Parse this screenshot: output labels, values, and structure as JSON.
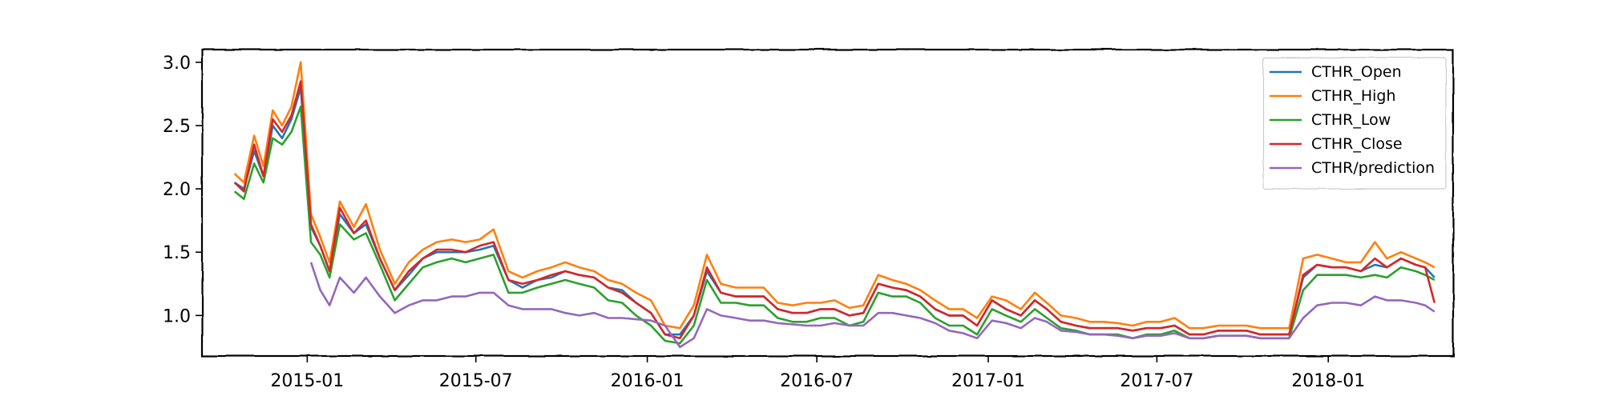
{
  "chart_data": {
    "type": "line",
    "title": "",
    "xlabel": "",
    "ylabel": "",
    "xlim": [
      "2014-09-10",
      "2018-05-15"
    ],
    "ylim": [
      0.68,
      3.1
    ],
    "grid": false,
    "legend_placement": "top-right",
    "x_ticks": [
      "2015-01",
      "2015-07",
      "2016-01",
      "2016-07",
      "2017-01",
      "2017-07",
      "2018-01"
    ],
    "y_ticks": [
      "1.0",
      "1.5",
      "2.0",
      "2.5",
      "3.0"
    ],
    "x": [
      "2014-10-15",
      "2014-10-25",
      "2014-11-05",
      "2014-11-15",
      "2014-11-25",
      "2014-12-05",
      "2014-12-15",
      "2014-12-25",
      "2015-01-05",
      "2015-01-15",
      "2015-01-25",
      "2015-02-05",
      "2015-02-20",
      "2015-03-05",
      "2015-03-20",
      "2015-04-05",
      "2015-04-20",
      "2015-05-05",
      "2015-05-20",
      "2015-06-05",
      "2015-06-20",
      "2015-07-05",
      "2015-07-20",
      "2015-08-05",
      "2015-08-20",
      "2015-09-05",
      "2015-09-20",
      "2015-10-05",
      "2015-10-20",
      "2015-11-05",
      "2015-11-20",
      "2015-12-05",
      "2015-12-20",
      "2016-01-05",
      "2016-01-20",
      "2016-02-05",
      "2016-02-20",
      "2016-03-05",
      "2016-03-20",
      "2016-04-05",
      "2016-04-20",
      "2016-05-05",
      "2016-05-20",
      "2016-06-05",
      "2016-06-20",
      "2016-07-05",
      "2016-07-20",
      "2016-08-05",
      "2016-08-20",
      "2016-09-05",
      "2016-09-20",
      "2016-10-05",
      "2016-10-20",
      "2016-11-05",
      "2016-11-20",
      "2016-12-05",
      "2016-12-20",
      "2017-01-05",
      "2017-01-20",
      "2017-02-05",
      "2017-02-20",
      "2017-03-05",
      "2017-03-20",
      "2017-04-05",
      "2017-04-20",
      "2017-05-05",
      "2017-05-20",
      "2017-06-05",
      "2017-06-20",
      "2017-07-05",
      "2017-07-20",
      "2017-08-05",
      "2017-08-20",
      "2017-09-05",
      "2017-09-20",
      "2017-10-05",
      "2017-10-20",
      "2017-11-05",
      "2017-11-20",
      "2017-12-05",
      "2017-12-20",
      "2018-01-05",
      "2018-01-20",
      "2018-02-05",
      "2018-02-20",
      "2018-03-05",
      "2018-03-20",
      "2018-04-05",
      "2018-04-15",
      "2018-04-25"
    ],
    "series": [
      {
        "name": "CTHR_Open",
        "color": "#1f77b4",
        "values": [
          2.05,
          2.0,
          2.3,
          2.1,
          2.5,
          2.4,
          2.55,
          2.8,
          1.7,
          1.55,
          1.35,
          1.8,
          1.65,
          1.72,
          1.45,
          1.2,
          1.32,
          1.45,
          1.5,
          1.5,
          1.5,
          1.52,
          1.55,
          1.28,
          1.22,
          1.28,
          1.3,
          1.35,
          1.32,
          1.3,
          1.22,
          1.2,
          1.1,
          1.02,
          0.85,
          0.85,
          1.0,
          1.35,
          1.18,
          1.15,
          1.15,
          1.15,
          1.05,
          1.02,
          1.02,
          1.05,
          1.05,
          1.0,
          1.02,
          1.25,
          1.22,
          1.2,
          1.15,
          1.05,
          1.0,
          1.0,
          0.92,
          1.12,
          1.05,
          1.0,
          1.12,
          1.05,
          0.95,
          0.92,
          0.9,
          0.9,
          0.9,
          0.88,
          0.9,
          0.9,
          0.92,
          0.85,
          0.85,
          0.88,
          0.88,
          0.88,
          0.85,
          0.85,
          0.85,
          1.3,
          1.4,
          1.38,
          1.38,
          1.35,
          1.4,
          1.38,
          1.45,
          1.4,
          1.38,
          1.3
        ]
      },
      {
        "name": "CTHR_High",
        "color": "#ff7f0e",
        "values": [
          2.12,
          2.05,
          2.42,
          2.18,
          2.62,
          2.5,
          2.65,
          3.0,
          1.8,
          1.62,
          1.42,
          1.9,
          1.7,
          1.88,
          1.52,
          1.25,
          1.42,
          1.52,
          1.58,
          1.6,
          1.58,
          1.6,
          1.68,
          1.35,
          1.3,
          1.35,
          1.38,
          1.42,
          1.38,
          1.35,
          1.28,
          1.25,
          1.18,
          1.12,
          0.92,
          0.9,
          1.08,
          1.48,
          1.25,
          1.22,
          1.22,
          1.22,
          1.1,
          1.08,
          1.1,
          1.1,
          1.12,
          1.06,
          1.08,
          1.32,
          1.28,
          1.25,
          1.2,
          1.12,
          1.05,
          1.05,
          0.98,
          1.15,
          1.12,
          1.05,
          1.18,
          1.1,
          1.0,
          0.98,
          0.95,
          0.95,
          0.94,
          0.92,
          0.95,
          0.95,
          0.98,
          0.9,
          0.9,
          0.92,
          0.92,
          0.92,
          0.9,
          0.9,
          0.9,
          1.45,
          1.48,
          1.45,
          1.42,
          1.42,
          1.58,
          1.45,
          1.5,
          1.45,
          1.42,
          1.38
        ]
      },
      {
        "name": "CTHR_Low",
        "color": "#2ca02c",
        "values": [
          1.98,
          1.92,
          2.2,
          2.05,
          2.4,
          2.35,
          2.45,
          2.65,
          1.58,
          1.48,
          1.3,
          1.72,
          1.6,
          1.65,
          1.4,
          1.12,
          1.25,
          1.38,
          1.42,
          1.45,
          1.42,
          1.45,
          1.48,
          1.18,
          1.18,
          1.22,
          1.25,
          1.28,
          1.25,
          1.22,
          1.12,
          1.1,
          1.0,
          0.92,
          0.8,
          0.78,
          0.92,
          1.28,
          1.1,
          1.1,
          1.08,
          1.08,
          0.98,
          0.95,
          0.95,
          0.98,
          0.98,
          0.92,
          0.95,
          1.18,
          1.15,
          1.15,
          1.1,
          0.98,
          0.92,
          0.92,
          0.85,
          1.05,
          1.0,
          0.95,
          1.05,
          0.98,
          0.9,
          0.88,
          0.85,
          0.85,
          0.85,
          0.82,
          0.85,
          0.85,
          0.88,
          0.82,
          0.82,
          0.84,
          0.84,
          0.84,
          0.82,
          0.82,
          0.82,
          1.2,
          1.32,
          1.32,
          1.32,
          1.3,
          1.32,
          1.3,
          1.38,
          1.35,
          1.32,
          1.28
        ]
      },
      {
        "name": "CTHR_Close",
        "color": "#d62728",
        "values": [
          2.05,
          1.98,
          2.35,
          2.1,
          2.55,
          2.45,
          2.58,
          2.85,
          1.72,
          1.55,
          1.35,
          1.85,
          1.65,
          1.75,
          1.45,
          1.2,
          1.35,
          1.45,
          1.52,
          1.52,
          1.5,
          1.55,
          1.58,
          1.28,
          1.25,
          1.28,
          1.32,
          1.35,
          1.32,
          1.3,
          1.22,
          1.18,
          1.1,
          1.02,
          0.85,
          0.82,
          1.0,
          1.38,
          1.18,
          1.15,
          1.15,
          1.15,
          1.05,
          1.02,
          1.02,
          1.05,
          1.05,
          1.0,
          1.02,
          1.25,
          1.22,
          1.2,
          1.15,
          1.05,
          1.0,
          1.0,
          0.92,
          1.12,
          1.05,
          1.0,
          1.12,
          1.05,
          0.95,
          0.92,
          0.9,
          0.9,
          0.9,
          0.88,
          0.9,
          0.9,
          0.92,
          0.85,
          0.85,
          0.88,
          0.88,
          0.88,
          0.85,
          0.85,
          0.85,
          1.32,
          1.4,
          1.38,
          1.38,
          1.35,
          1.45,
          1.38,
          1.45,
          1.4,
          1.38,
          1.1
        ]
      },
      {
        "name": "CTHR/prediction",
        "color": "#9467bd",
        "values": [
          null,
          null,
          null,
          null,
          null,
          null,
          null,
          null,
          1.42,
          1.2,
          1.08,
          1.3,
          1.18,
          1.3,
          1.15,
          1.02,
          1.08,
          1.12,
          1.12,
          1.15,
          1.15,
          1.18,
          1.18,
          1.08,
          1.05,
          1.05,
          1.05,
          1.02,
          1.0,
          1.02,
          0.98,
          0.98,
          0.97,
          0.96,
          0.92,
          0.75,
          0.82,
          1.05,
          1.0,
          0.98,
          0.96,
          0.96,
          0.94,
          0.93,
          0.92,
          0.92,
          0.94,
          0.92,
          0.92,
          1.02,
          1.02,
          1.0,
          0.98,
          0.94,
          0.88,
          0.86,
          0.82,
          0.96,
          0.94,
          0.9,
          0.98,
          0.95,
          0.88,
          0.87,
          0.85,
          0.85,
          0.84,
          0.82,
          0.84,
          0.84,
          0.86,
          0.82,
          0.82,
          0.84,
          0.84,
          0.84,
          0.82,
          0.82,
          0.82,
          0.98,
          1.08,
          1.1,
          1.1,
          1.08,
          1.15,
          1.12,
          1.12,
          1.1,
          1.08,
          1.03
        ]
      }
    ]
  }
}
